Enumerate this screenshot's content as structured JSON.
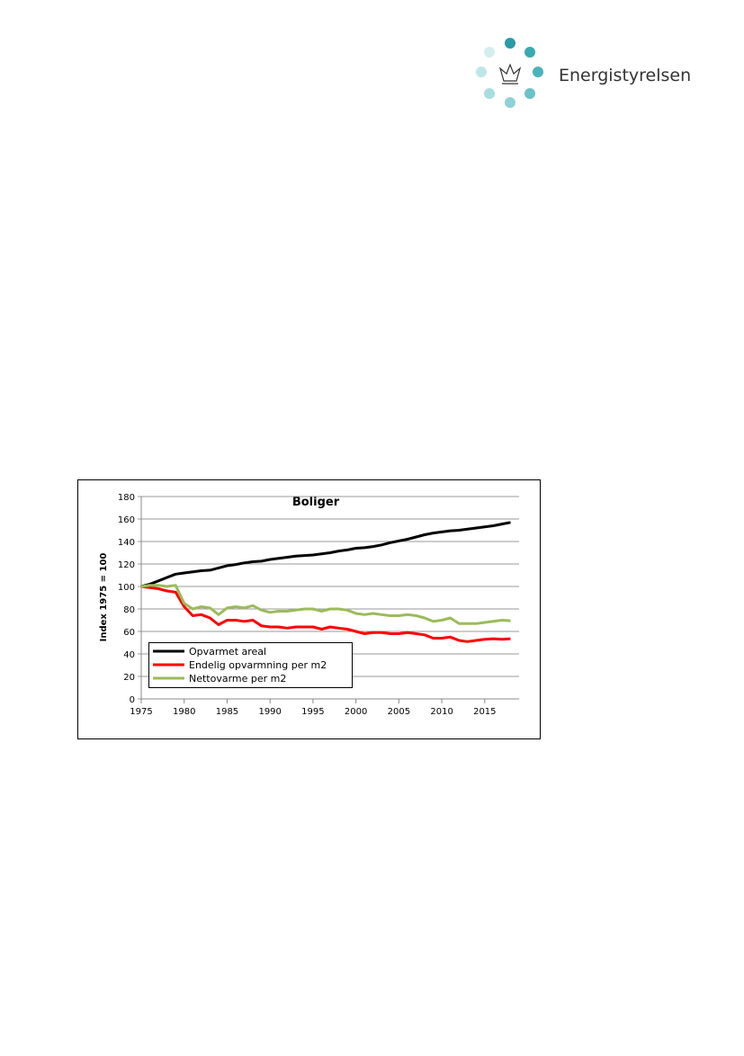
{
  "header": {
    "title": "Energistyrelsen"
  },
  "chart_data": {
    "type": "line",
    "title": "Boliger",
    "y_label": "Index 1975 = 100",
    "x": [
      1975,
      1976,
      1977,
      1978,
      1979,
      1980,
      1981,
      1982,
      1983,
      1984,
      1985,
      1986,
      1987,
      1988,
      1989,
      1990,
      1991,
      1992,
      1993,
      1994,
      1995,
      1996,
      1997,
      1998,
      1999,
      2000,
      2001,
      2002,
      2003,
      2004,
      2005,
      2006,
      2007,
      2008,
      2009,
      2010,
      2011,
      2012,
      2013,
      2014,
      2015,
      2016,
      2017,
      2018
    ],
    "series": [
      {
        "name": "Opvarmet areal",
        "color": "#000000",
        "values": [
          100,
          102,
          105,
          108,
          111,
          112,
          113,
          114,
          114.5,
          116.5,
          118.5,
          119.5,
          121,
          122,
          122.5,
          124,
          125,
          126,
          127,
          127.5,
          128,
          129,
          130,
          131.5,
          132.5,
          134,
          134.5,
          135.5,
          137,
          139,
          140.5,
          142,
          144,
          146,
          147.5,
          148.5,
          149.5,
          150,
          151,
          152,
          153,
          154,
          155.5,
          157
        ]
      },
      {
        "name": "Endelig opvarmning per m2",
        "color": "#ff0000",
        "values": [
          100,
          99,
          98,
          96,
          95,
          82,
          74,
          75,
          72,
          66,
          70,
          70,
          69,
          70,
          65,
          64,
          64,
          63,
          64,
          64,
          64,
          62,
          64,
          63,
          62,
          60,
          58,
          59,
          59,
          58,
          58,
          59,
          58,
          57,
          54,
          54,
          55,
          52,
          51,
          52,
          53,
          53.5,
          53,
          53.5
        ]
      },
      {
        "name": "Nettovarme per m2",
        "color": "#9bbb59",
        "values": [
          100,
          101,
          101,
          100,
          101,
          85,
          80,
          82,
          81,
          75,
          81,
          82,
          81,
          83,
          79,
          77,
          78,
          78,
          79,
          80,
          80,
          78,
          80,
          80,
          79,
          76,
          75,
          76,
          75,
          74,
          74,
          75,
          74,
          72,
          69,
          70,
          72,
          67,
          67,
          67,
          68,
          69,
          70,
          69.5
        ]
      }
    ],
    "xlim": [
      1975,
      2019
    ],
    "xticks": [
      1975,
      1980,
      1985,
      1990,
      1995,
      2000,
      2005,
      2010,
      2015
    ],
    "ylim": [
      0,
      180
    ],
    "yticks": [
      0,
      20,
      40,
      60,
      80,
      100,
      120,
      140,
      160,
      180
    ],
    "grid": true
  }
}
